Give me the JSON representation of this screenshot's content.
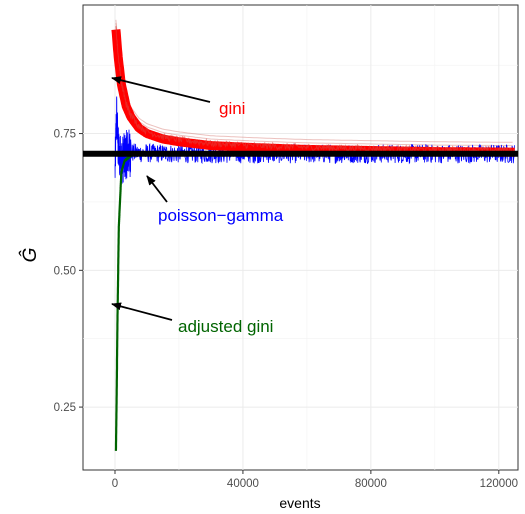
{
  "chart_data": {
    "type": "line",
    "title": "",
    "xlabel": "events",
    "ylabel": "Ĝ",
    "xlim": [
      -10000,
      126000
    ],
    "ylim": [
      0.135,
      0.985
    ],
    "x_ticks": [
      0,
      40000,
      80000,
      120000
    ],
    "x_tick_labels": [
      "0",
      "40000",
      "80000",
      "120000"
    ],
    "y_ticks": [
      0.25,
      0.5,
      0.75
    ],
    "y_tick_labels": [
      "0.25",
      "0.50",
      "0.75"
    ],
    "grid": true,
    "legend": "none",
    "reference_line": {
      "y": 0.713,
      "color": "#000000"
    },
    "series": [
      {
        "color": "#ff0000",
        "x": [
          300,
          1000,
          2000,
          3500,
          5000,
          7500,
          10000,
          15000,
          20000,
          30000,
          45000,
          60000,
          80000,
          100000,
          125000
        ],
        "values": [
          0.94,
          0.89,
          0.84,
          0.8,
          0.78,
          0.76,
          0.75,
          0.74,
          0.735,
          0.728,
          0.724,
          0.721,
          0.719,
          0.717,
          0.716
        ]
      },
      {
        "color": "#0000ff",
        "x": [
          0,
          500,
          1000,
          2000,
          4000,
          10000,
          30000,
          60000,
          90000,
          125000
        ],
        "values": [
          0.68,
          0.79,
          0.72,
          0.7,
          0.715,
          0.714,
          0.713,
          0.713,
          0.713,
          0.713
        ]
      },
      {
        "color": "#006400",
        "x": [
          300,
          500,
          800,
          1200,
          2000,
          3000,
          5000
        ],
        "values": [
          0.17,
          0.26,
          0.42,
          0.58,
          0.68,
          0.7,
          0.71
        ]
      }
    ],
    "annotations": [
      {
        "text": "gini",
        "color": "#ff0000"
      },
      {
        "text": "poisson−gamma",
        "color": "#0000ff"
      },
      {
        "text": "adjusted gini",
        "color": "#006400"
      }
    ]
  }
}
